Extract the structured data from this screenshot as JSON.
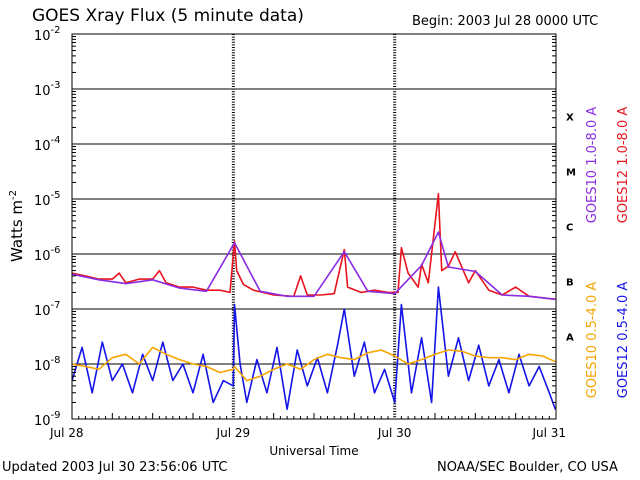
{
  "header": {
    "title": "GOES Xray Flux (5 minute data)",
    "begin": "Begin:  2003 Jul 28 0000 UTC"
  },
  "footer": {
    "updated": "Updated 2003 Jul 30 23:56:06 UTC",
    "credit": "NOAA/SEC Boulder, CO USA"
  },
  "colors": {
    "goes10_long": "#8a2be2",
    "goes12_long": "#e8141e",
    "goes10_short": "#f5a400",
    "goes12_short": "#1414e6"
  },
  "chart_data": {
    "type": "line",
    "title": "GOES Xray Flux (5 minute data)",
    "xlabel": "Universal Time",
    "ylabel": "Watts m-2",
    "ylabel_main": "Watts m",
    "ylabel_sup": "-2",
    "yscale": "log",
    "ylim": [
      1e-09,
      0.01
    ],
    "xlim": [
      "2003-07-28",
      "2003-07-31"
    ],
    "xticks": [
      "Jul 28",
      "Jul 29",
      "Jul 30",
      "Jul 31"
    ],
    "ytick_exponents": [
      "-9",
      "-8",
      "-7",
      "-6",
      "-5",
      "-4",
      "-3",
      "-2"
    ],
    "ytick_base": "10",
    "flare_classes": [
      "A",
      "B",
      "C",
      "M",
      "X"
    ],
    "grid": true,
    "legend_right": [
      {
        "label": "GOES10 1.0-8.0 A",
        "color": "#8a2be2"
      },
      {
        "label": "GOES12 1.0-8.0 A",
        "color": "#e8141e"
      },
      {
        "label": "GOES10 0.5-4.0 A",
        "color": "#f5a400"
      },
      {
        "label": "GOES12 0.5-4.0 A",
        "color": "#1414e6"
      }
    ],
    "series": [
      {
        "name": "GOES12 1.0-8.0 A",
        "color": "#e8141e",
        "x": [
          "2003-07-28T00:00",
          "2003-07-28T02:00",
          "2003-07-28T04:00",
          "2003-07-28T06:00",
          "2003-07-28T07:00",
          "2003-07-28T08:00",
          "2003-07-28T10:00",
          "2003-07-28T12:00",
          "2003-07-28T13:00",
          "2003-07-28T14:00",
          "2003-07-28T16:00",
          "2003-07-28T18:00",
          "2003-07-28T20:00",
          "2003-07-28T22:00",
          "2003-07-28T23:30",
          "2003-07-29T00:10",
          "2003-07-29T00:30",
          "2003-07-29T01:30",
          "2003-07-29T03:00",
          "2003-07-29T06:00",
          "2003-07-29T09:00",
          "2003-07-29T10:00",
          "2003-07-29T11:00",
          "2003-07-29T13:00",
          "2003-07-29T15:00",
          "2003-07-29T16:30",
          "2003-07-29T17:00",
          "2003-07-29T19:00",
          "2003-07-29T21:00",
          "2003-07-29T23:00",
          "2003-07-30T00:30",
          "2003-07-30T01:00",
          "2003-07-30T02:00",
          "2003-07-30T03:30",
          "2003-07-30T04:00",
          "2003-07-30T05:00",
          "2003-07-30T06:30",
          "2003-07-30T07:00",
          "2003-07-30T08:00",
          "2003-07-30T09:00",
          "2003-07-30T11:00",
          "2003-07-30T12:00",
          "2003-07-30T14:00",
          "2003-07-30T16:00",
          "2003-07-30T18:00",
          "2003-07-30T20:00",
          "2003-07-30T22:00",
          "2003-07-30T23:55"
        ],
        "y": [
          4.5e-07,
          4e-07,
          3.5e-07,
          3.5e-07,
          4.5e-07,
          3e-07,
          3.5e-07,
          3.5e-07,
          5e-07,
          3e-07,
          2.5e-07,
          2.5e-07,
          2.2e-07,
          2.2e-07,
          2e-07,
          1.7e-06,
          5e-07,
          2.8e-07,
          2.2e-07,
          1.8e-07,
          1.7e-07,
          4e-07,
          1.8e-07,
          1.8e-07,
          1.9e-07,
          1.2e-06,
          2.5e-07,
          2e-07,
          2.2e-07,
          2e-07,
          2e-07,
          1.3e-06,
          4.5e-07,
          2.5e-07,
          6.5e-07,
          3e-07,
          1.25e-05,
          5e-07,
          6e-07,
          1.1e-06,
          3e-07,
          5e-07,
          2.2e-07,
          1.8e-07,
          2.5e-07,
          1.7e-07,
          1.6e-07,
          1.5e-07
        ]
      },
      {
        "name": "GOES10 1.0-8.0 A",
        "color": "#8a2be2",
        "x": [
          "2003-07-28T00:00",
          "2003-07-28T04:00",
          "2003-07-28T08:00",
          "2003-07-28T12:00",
          "2003-07-28T16:00",
          "2003-07-28T20:00",
          "2003-07-29T00:10",
          "2003-07-29T04:00",
          "2003-07-29T08:00",
          "2003-07-29T12:00",
          "2003-07-29T16:30",
          "2003-07-29T20:00",
          "2003-07-30T00:00",
          "2003-07-30T04:00",
          "2003-07-30T06:30",
          "2003-07-30T08:00",
          "2003-07-30T12:00",
          "2003-07-30T16:00",
          "2003-07-30T20:00",
          "2003-07-30T23:55"
        ],
        "y": [
          4.3e-07,
          3.4e-07,
          2.9e-07,
          3.4e-07,
          2.4e-07,
          2.1e-07,
          1.6e-06,
          2.1e-07,
          1.7e-07,
          1.7e-07,
          1.1e-06,
          2.1e-07,
          1.9e-07,
          6.2e-07,
          2.5e-06,
          5.8e-07,
          4.8e-07,
          1.8e-07,
          1.7e-07,
          1.5e-07
        ]
      },
      {
        "name": "GOES10 0.5-4.0 A",
        "color": "#f5a400",
        "x": [
          "2003-07-28T00:00",
          "2003-07-28T02:00",
          "2003-07-28T04:00",
          "2003-07-28T06:00",
          "2003-07-28T08:00",
          "2003-07-28T10:00",
          "2003-07-28T12:00",
          "2003-07-28T14:00",
          "2003-07-28T16:00",
          "2003-07-28T18:00",
          "2003-07-28T20:00",
          "2003-07-28T22:00",
          "2003-07-29T00:00",
          "2003-07-29T00:10",
          "2003-07-29T02:00",
          "2003-07-29T04:00",
          "2003-07-29T06:00",
          "2003-07-29T08:00",
          "2003-07-29T10:00",
          "2003-07-29T12:00",
          "2003-07-29T14:00",
          "2003-07-29T16:00",
          "2003-07-29T18:00",
          "2003-07-29T20:00",
          "2003-07-29T22:00",
          "2003-07-30T00:00",
          "2003-07-30T02:00",
          "2003-07-30T04:00",
          "2003-07-30T06:00",
          "2003-07-30T08:00",
          "2003-07-30T10:00",
          "2003-07-30T12:00",
          "2003-07-30T14:00",
          "2003-07-30T16:00",
          "2003-07-30T18:00",
          "2003-07-30T20:00",
          "2003-07-30T22:00",
          "2003-07-30T23:55"
        ],
        "y": [
          1e-08,
          9e-09,
          8e-09,
          1.3e-08,
          1.5e-08,
          1e-08,
          2e-08,
          1.5e-08,
          1.2e-08,
          1e-08,
          9e-09,
          7e-09,
          8e-09,
          9e-09,
          5e-09,
          6e-09,
          8e-09,
          1e-08,
          8e-09,
          1.2e-08,
          1.5e-08,
          1.3e-08,
          1.2e-08,
          1.6e-08,
          1.8e-08,
          1.4e-08,
          1e-08,
          1.2e-08,
          1.5e-08,
          1.8e-08,
          1.7e-08,
          1.4e-08,
          1.3e-08,
          1.3e-08,
          1.2e-08,
          1.5e-08,
          1.4e-08,
          1.1e-08
        ]
      },
      {
        "name": "GOES12 0.5-4.0 A",
        "color": "#1414e6",
        "x": [
          "2003-07-28T00:00",
          "2003-07-28T01:30",
          "2003-07-28T03:00",
          "2003-07-28T04:30",
          "2003-07-28T06:00",
          "2003-07-28T07:30",
          "2003-07-28T09:00",
          "2003-07-28T10:30",
          "2003-07-28T12:00",
          "2003-07-28T13:30",
          "2003-07-28T15:00",
          "2003-07-28T16:30",
          "2003-07-28T18:00",
          "2003-07-28T19:30",
          "2003-07-28T21:00",
          "2003-07-28T22:30",
          "2003-07-29T00:00",
          "2003-07-29T00:10",
          "2003-07-29T01:00",
          "2003-07-29T02:00",
          "2003-07-29T03:30",
          "2003-07-29T05:00",
          "2003-07-29T06:30",
          "2003-07-29T08:00",
          "2003-07-29T09:30",
          "2003-07-29T11:00",
          "2003-07-29T12:30",
          "2003-07-29T14:00",
          "2003-07-29T15:30",
          "2003-07-29T16:30",
          "2003-07-29T18:00",
          "2003-07-29T19:30",
          "2003-07-29T21:00",
          "2003-07-29T22:30",
          "2003-07-30T00:00",
          "2003-07-30T01:00",
          "2003-07-30T02:30",
          "2003-07-30T04:00",
          "2003-07-30T05:30",
          "2003-07-30T06:30",
          "2003-07-30T08:00",
          "2003-07-30T09:30",
          "2003-07-30T11:00",
          "2003-07-30T12:30",
          "2003-07-30T14:00",
          "2003-07-30T15:30",
          "2003-07-30T17:00",
          "2003-07-30T18:30",
          "2003-07-30T20:00",
          "2003-07-30T21:30",
          "2003-07-30T23:00",
          "2003-07-30T23:55"
        ],
        "y": [
          5e-09,
          2e-08,
          3e-09,
          2.5e-08,
          5e-09,
          1e-08,
          3e-09,
          1.5e-08,
          5e-09,
          2.5e-08,
          5e-09,
          1e-08,
          3e-09,
          1.5e-08,
          2e-09,
          5e-09,
          4e-09,
          1.2e-07,
          1e-08,
          2e-09,
          1.2e-08,
          3e-09,
          2e-08,
          1.5e-09,
          1.8e-08,
          4e-09,
          1.3e-08,
          3e-09,
          2.2e-08,
          1e-07,
          6e-09,
          2.5e-08,
          3e-09,
          8e-09,
          2e-09,
          1.2e-07,
          3e-09,
          3e-08,
          2e-09,
          2.5e-07,
          6e-09,
          3e-08,
          5e-09,
          2.2e-08,
          4e-09,
          1.2e-08,
          3e-09,
          1.5e-08,
          4e-09,
          9e-09,
          3e-09,
          1.5e-09
        ]
      }
    ]
  }
}
